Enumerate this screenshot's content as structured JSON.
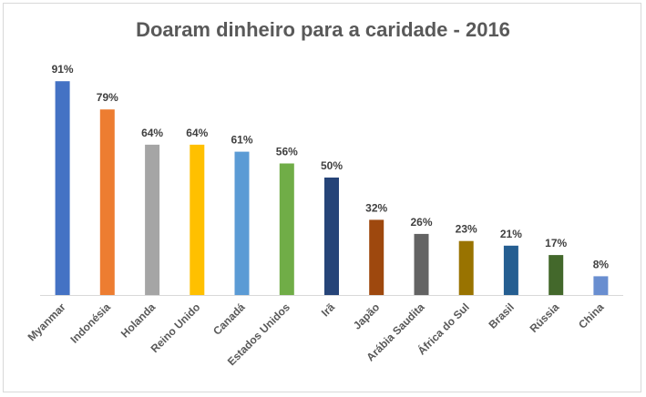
{
  "chart_data": {
    "type": "bar",
    "title": "Doaram dinheiro para a caridade - 2016",
    "xlabel": "",
    "ylabel": "",
    "ylim": [
      0,
      100
    ],
    "grid": false,
    "legend": "none",
    "value_suffix": "%",
    "categories": [
      "Myanmar",
      "Indonésia",
      "Holanda",
      "Reino Unido",
      "Canadá",
      "Estados Unidos",
      "Irã",
      "Japão",
      "Arábia Saudita",
      "África do Sul",
      "Brasil",
      "Rússia",
      "China"
    ],
    "values": [
      91,
      79,
      64,
      64,
      61,
      56,
      50,
      32,
      26,
      23,
      21,
      17,
      8
    ],
    "colors": [
      "#4472c4",
      "#ed7d31",
      "#a5a5a5",
      "#ffc000",
      "#5b9bd5",
      "#70ad47",
      "#264478",
      "#9e480e",
      "#636363",
      "#997300",
      "#255e91",
      "#43682b",
      "#698ed0"
    ]
  }
}
